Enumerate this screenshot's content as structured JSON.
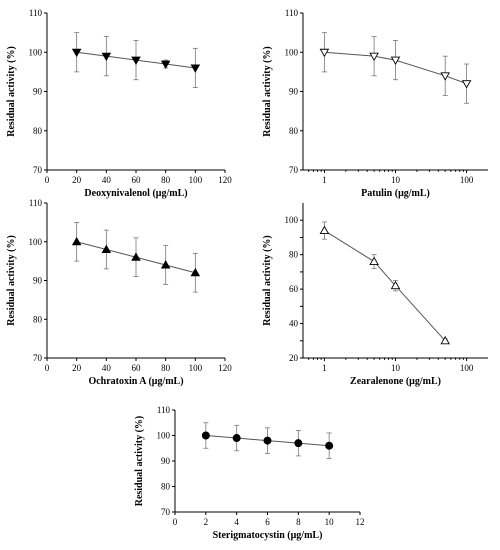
{
  "chart_data": [
    {
      "type": "line",
      "xlabel": "Deoxynivalenol (μg/mL)",
      "ylabel": "Residual activity (%)",
      "xscale": "linear",
      "xlim": [
        0,
        120
      ],
      "ylim": [
        70,
        110
      ],
      "xticks": [
        0,
        20,
        40,
        60,
        80,
        100,
        120
      ],
      "yticks": [
        70,
        80,
        90,
        100,
        110
      ],
      "marker": "triangle-down",
      "filled": true,
      "series": [
        {
          "x": [
            20,
            40,
            60,
            80,
            100
          ],
          "y": [
            100,
            99,
            98,
            97,
            96
          ],
          "err": [
            5,
            5,
            5,
            1,
            5
          ]
        }
      ]
    },
    {
      "type": "line",
      "xlabel": "Patulin (μg/mL)",
      "ylabel": "Residual activity (%)",
      "xscale": "log",
      "xlim": [
        0.5,
        200
      ],
      "ylim": [
        70,
        110
      ],
      "xticks": [
        1,
        10,
        100
      ],
      "yticks": [
        70,
        80,
        90,
        100,
        110
      ],
      "marker": "triangle-down",
      "filled": false,
      "series": [
        {
          "x": [
            1,
            5,
            10,
            50,
            100
          ],
          "y": [
            100,
            99,
            98,
            94,
            92
          ],
          "err": [
            5,
            5,
            5,
            5,
            5
          ]
        }
      ]
    },
    {
      "type": "line",
      "xlabel": "Ochratoxin A (μg/mL)",
      "ylabel": "Residual activity (%)",
      "xscale": "linear",
      "xlim": [
        0,
        120
      ],
      "ylim": [
        70,
        110
      ],
      "xticks": [
        0,
        20,
        40,
        60,
        80,
        100,
        120
      ],
      "yticks": [
        70,
        80,
        90,
        100,
        110
      ],
      "marker": "triangle-up",
      "filled": true,
      "series": [
        {
          "x": [
            20,
            40,
            60,
            80,
            100
          ],
          "y": [
            100,
            98,
            96,
            94,
            92
          ],
          "err": [
            5,
            5,
            5,
            5,
            5
          ]
        }
      ]
    },
    {
      "type": "line",
      "xlabel": "Zearalenone (μg/mL)",
      "ylabel": "Residual activity (%)",
      "xscale": "log",
      "xlim": [
        0.5,
        200
      ],
      "ylim": [
        20,
        110
      ],
      "xticks": [
        1,
        10,
        100
      ],
      "yticks": [
        20,
        30,
        40,
        50,
        60,
        70,
        80,
        90,
        100
      ],
      "yticklabels": [
        "20",
        "",
        "40",
        "",
        "60",
        "",
        "80",
        "",
        "100"
      ],
      "marker": "triangle-up",
      "filled": false,
      "series": [
        {
          "x": [
            1,
            5,
            10,
            50
          ],
          "y": [
            94,
            76,
            62,
            30
          ],
          "err": [
            5,
            4,
            3,
            1
          ]
        }
      ]
    },
    {
      "type": "line",
      "xlabel": "Sterigmatocystin (μg/mL)",
      "ylabel": "Residual activity (%)",
      "xscale": "linear",
      "xlim": [
        0,
        12
      ],
      "ylim": [
        70,
        110
      ],
      "xticks": [
        0,
        2,
        4,
        6,
        8,
        10,
        12
      ],
      "yticks": [
        70,
        80,
        90,
        100,
        110
      ],
      "marker": "circle",
      "filled": true,
      "series": [
        {
          "x": [
            2,
            4,
            6,
            8,
            10
          ],
          "y": [
            100,
            99,
            98,
            97,
            96
          ],
          "err": [
            5,
            5,
            5,
            5,
            5
          ]
        }
      ]
    }
  ]
}
